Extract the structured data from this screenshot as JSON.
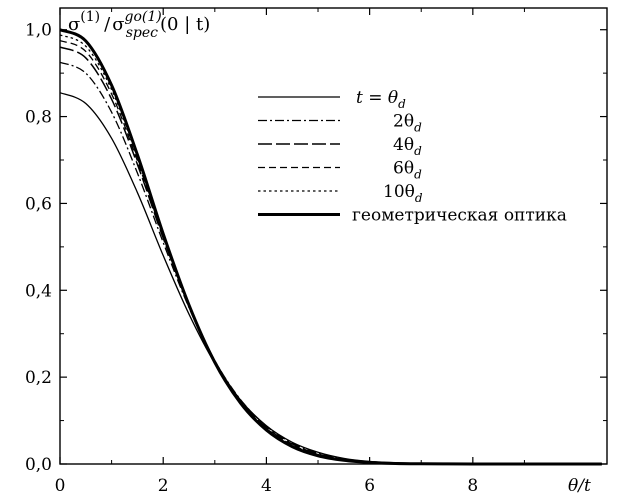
{
  "chart_data": {
    "type": "line",
    "title": {
      "sigma": "σ",
      "sup1": "(1)",
      "sigma2": "σ",
      "sub": "spec",
      "sup2": "go(1)",
      "tail": "(0 | t)"
    },
    "xlabel": "θ/t",
    "ylabel": "",
    "xlim": [
      0,
      10.6
    ],
    "ylim": [
      0,
      1.05
    ],
    "x_ticks": [
      {
        "value": 0,
        "label": "0"
      },
      {
        "value": 2,
        "label": "2"
      },
      {
        "value": 4,
        "label": "4"
      },
      {
        "value": 6,
        "label": "6"
      },
      {
        "value": 8,
        "label": "8"
      }
    ],
    "y_ticks": [
      {
        "value": 0,
        "label": "0,0"
      },
      {
        "value": 0.2,
        "label": "0,2"
      },
      {
        "value": 0.4,
        "label": "0,4"
      },
      {
        "value": 0.6,
        "label": "0,6"
      },
      {
        "value": 0.8,
        "label": "0,8"
      },
      {
        "value": 1.0,
        "label": "1,0"
      }
    ],
    "legend": [
      {
        "label": "t = θ",
        "sub": "d"
      },
      {
        "label": "2θ",
        "sub": "d"
      },
      {
        "label": "4θ",
        "sub": "d"
      },
      {
        "label": "6θ",
        "sub": "d"
      },
      {
        "label": "10θ",
        "sub": "d"
      },
      {
        "label": "геометрическая оптика",
        "sub": ""
      }
    ],
    "x": [
      0,
      0.5,
      1,
      1.5,
      2,
      2.5,
      3,
      3.5,
      4,
      4.5,
      5,
      5.5,
      6,
      6.5,
      7,
      7.5,
      8,
      8.5,
      9,
      9.5,
      10,
      10.5
    ],
    "series": [
      {
        "style": "solid-thin",
        "values": [
          0.855,
          0.83,
          0.75,
          0.625,
          0.48,
          0.345,
          0.232,
          0.147,
          0.088,
          0.05,
          0.027,
          0.013,
          0.006,
          0.003,
          0.0012,
          0.0005,
          0.0002,
          0.0001,
          0.0,
          0.0,
          0.0,
          0.0
        ]
      },
      {
        "style": "dashdot",
        "values": [
          0.925,
          0.9,
          0.81,
          0.67,
          0.51,
          0.36,
          0.238,
          0.148,
          0.087,
          0.048,
          0.025,
          0.012,
          0.0055,
          0.0024,
          0.001,
          0.0004,
          0.0001,
          0.0,
          0.0,
          0.0,
          0.0,
          0.0
        ]
      },
      {
        "style": "longdash",
        "values": [
          0.96,
          0.935,
          0.84,
          0.69,
          0.52,
          0.365,
          0.238,
          0.146,
          0.084,
          0.046,
          0.023,
          0.011,
          0.005,
          0.002,
          0.0008,
          0.0003,
          0.0001,
          0.0,
          0.0,
          0.0,
          0.0,
          0.0
        ]
      },
      {
        "style": "dash",
        "values": [
          0.975,
          0.95,
          0.852,
          0.698,
          0.524,
          0.366,
          0.237,
          0.144,
          0.082,
          0.044,
          0.022,
          0.01,
          0.0045,
          0.0018,
          0.0007,
          0.0002,
          0.0001,
          0.0,
          0.0,
          0.0,
          0.0,
          0.0
        ]
      },
      {
        "style": "dot",
        "values": [
          0.988,
          0.962,
          0.862,
          0.705,
          0.527,
          0.366,
          0.236,
          0.142,
          0.08,
          0.042,
          0.021,
          0.0095,
          0.004,
          0.0016,
          0.0006,
          0.0002,
          0.0001,
          0.0,
          0.0,
          0.0,
          0.0,
          0.0
        ]
      },
      {
        "style": "solid-thick",
        "values": [
          1.0,
          0.974,
          0.872,
          0.712,
          0.53,
          0.366,
          0.234,
          0.14,
          0.078,
          0.04,
          0.019,
          0.0085,
          0.0035,
          0.0013,
          0.0005,
          0.0002,
          0.0,
          0.0,
          0.0,
          0.0,
          0.0,
          0.0
        ]
      }
    ],
    "grid": false,
    "legend_position": "top-right"
  }
}
